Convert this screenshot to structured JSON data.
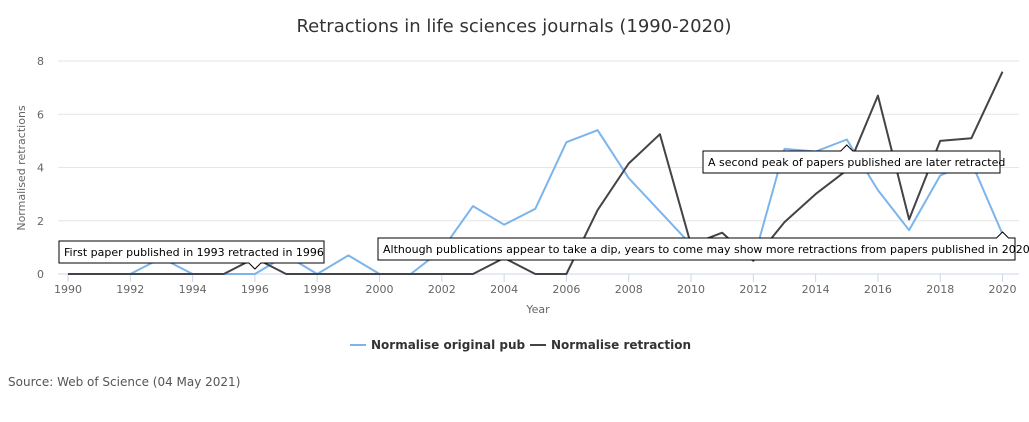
{
  "chart_data": {
    "type": "line",
    "title": "Retractions in life sciences journals (1990-2020)",
    "xlabel": "Year",
    "ylabel": "Normalised retractions",
    "x": [
      1990,
      1991,
      1992,
      1993,
      1994,
      1995,
      1996,
      1997,
      1998,
      1999,
      2000,
      2001,
      2002,
      2003,
      2004,
      2005,
      2006,
      2007,
      2008,
      2009,
      2010,
      2011,
      2012,
      2013,
      2014,
      2015,
      2016,
      2017,
      2018,
      2019,
      2020
    ],
    "x_ticks": [
      "1990",
      "1992",
      "1994",
      "1996",
      "1998",
      "2000",
      "2002",
      "2004",
      "2006",
      "2008",
      "2010",
      "2012",
      "2014",
      "2016",
      "2018",
      "2020"
    ],
    "y_ticks": [
      "0",
      "2",
      "4",
      "6",
      "8"
    ],
    "xlim": [
      1990,
      2020.4
    ],
    "ylim": [
      0,
      8
    ],
    "grid": true,
    "legend_position": "bottom-center",
    "series": [
      {
        "name": "Normalise original pub",
        "color": "#7cb5ec",
        "values": [
          0,
          0,
          0,
          0.6,
          0,
          0,
          0,
          0.7,
          0,
          0.7,
          0,
          0,
          0.9,
          2.55,
          1.85,
          2.45,
          4.95,
          5.4,
          3.6,
          2.35,
          1.1,
          1.3,
          0.5,
          4.7,
          4.6,
          5.05,
          3.15,
          1.65,
          3.7,
          4.2,
          1.5
        ]
      },
      {
        "name": "Normalise retraction",
        "color": "#434348",
        "values": [
          0,
          0,
          0,
          0,
          0,
          0,
          0.6,
          0,
          0,
          0,
          0,
          0,
          0,
          0,
          0.6,
          0,
          0,
          2.4,
          4.15,
          5.25,
          1.1,
          1.55,
          0.5,
          1.95,
          3.0,
          3.9,
          6.7,
          2.05,
          5.0,
          5.1,
          7.6
        ]
      }
    ],
    "annotations": [
      {
        "text": "First paper published in 1993 retracted in 1996",
        "point": [
          1996,
          0.6
        ]
      },
      {
        "text": "Although publications appear to take a dip, years to come may show more retractions from papers published in 2020",
        "point": [
          2020,
          1.5
        ]
      },
      {
        "text": "A second peak of papers published are later retracted",
        "point": [
          2015,
          4.8
        ]
      }
    ]
  },
  "source": "Source: Web of Science (04 May 2021)"
}
